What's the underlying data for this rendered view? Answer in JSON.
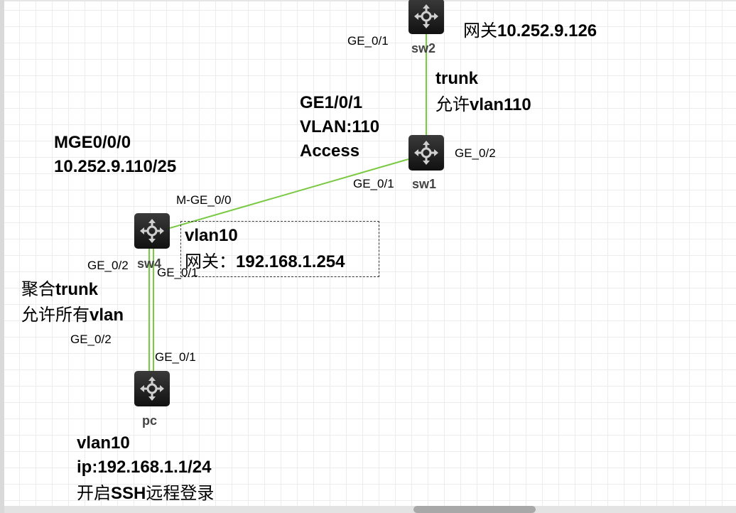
{
  "devices": [
    {
      "name": "sw2",
      "type": "switch"
    },
    {
      "name": "sw1",
      "type": "switch"
    },
    {
      "name": "sw4",
      "type": "switch"
    },
    {
      "name": "pc",
      "type": "switch"
    }
  ],
  "colors": {
    "link": "#7ac943",
    "device": "#1e1e1e"
  },
  "ports": {
    "sw2_ge01": "GE_0/1",
    "sw1_ge02": "GE_0/2",
    "sw1_ge01": "GE_0/1",
    "sw4_mge00": "M-GE_0/0",
    "sw4_ge02": "GE_0/2",
    "sw4_ge01": "GE_0/1",
    "pc_ge02": "GE_0/2",
    "pc_ge01": "GE_0/1"
  },
  "notes": {
    "sw2_gateway_label": "网关",
    "sw2_gateway_ip": "10.252.9.126",
    "trunk": "trunk",
    "allow_label": "允许",
    "allow_vlan": "vlan110",
    "ge101": "GE1/0/1",
    "vlan110": "VLAN:110",
    "access": "Access",
    "mge": "MGE0/0/0",
    "mge_ip": "10.252.9.110/25",
    "sw4_vlan": "vlan10",
    "sw4_gateway_label": "网关：",
    "sw4_gateway_ip": "192.168.1.254",
    "agg_cn": "聚合",
    "agg_trunk": "trunk",
    "allow_all_cn": "允许所有",
    "allow_all_vlan": "vlan",
    "pc_vlan": "vlan10",
    "pc_ip": "ip:192.168.1.1/24",
    "ssh_cn1": "开启",
    "ssh": "SSH",
    "ssh_cn2": "远程登录"
  }
}
